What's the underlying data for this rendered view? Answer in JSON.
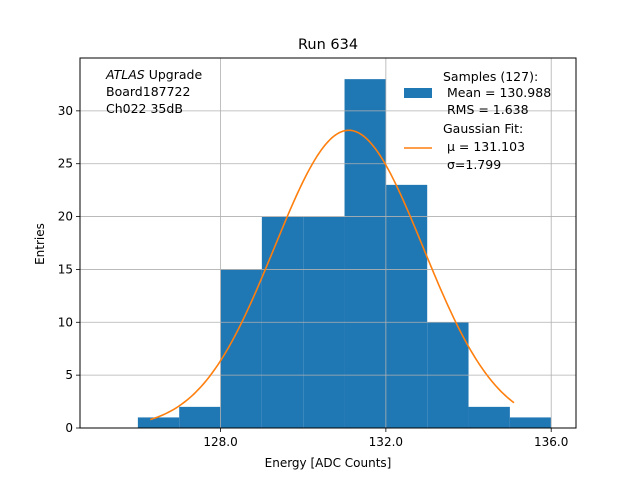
{
  "chart_data": {
    "type": "bar",
    "title": "Run 634",
    "xlabel": "Energy [ADC Counts]",
    "ylabel": "Entries",
    "xlim": [
      124.6,
      136.6
    ],
    "ylim": [
      0,
      35
    ],
    "x_ticks": [
      128.0,
      132.0,
      136.0
    ],
    "x_tick_labels": [
      "128.0",
      "132.0",
      "136.0"
    ],
    "y_ticks": [
      0,
      5,
      10,
      15,
      20,
      25,
      30
    ],
    "y_tick_labels": [
      "0",
      "5",
      "10",
      "15",
      "20",
      "25",
      "30"
    ],
    "grid": true,
    "histogram": {
      "bin_edges": [
        126,
        127,
        128,
        129,
        130,
        131,
        132,
        133,
        134,
        135,
        136
      ],
      "counts": [
        1,
        2,
        15,
        20,
        20,
        33,
        23,
        10,
        2,
        1
      ],
      "color": "#1f77b4"
    },
    "gaussian_fit": {
      "mu": 131.103,
      "sigma": 1.799,
      "x_range": [
        126.3,
        135.1
      ],
      "color": "#ff7f0e"
    },
    "annotation": {
      "line1_italic": "ATLAS",
      "line1_rest": " Upgrade",
      "line2": "Board187722",
      "line3": "Ch022 35dB"
    },
    "legend": {
      "position": "top-right",
      "entries": [
        {
          "lines": [
            "Samples (127):",
            " Mean = 130.988",
            " RMS = 1.638"
          ],
          "kind": "patch",
          "color": "#1f77b4"
        },
        {
          "lines": [
            "Gaussian Fit:",
            " μ = 131.103",
            " σ=1.799"
          ],
          "kind": "line",
          "color": "#ff7f0e"
        }
      ]
    }
  }
}
